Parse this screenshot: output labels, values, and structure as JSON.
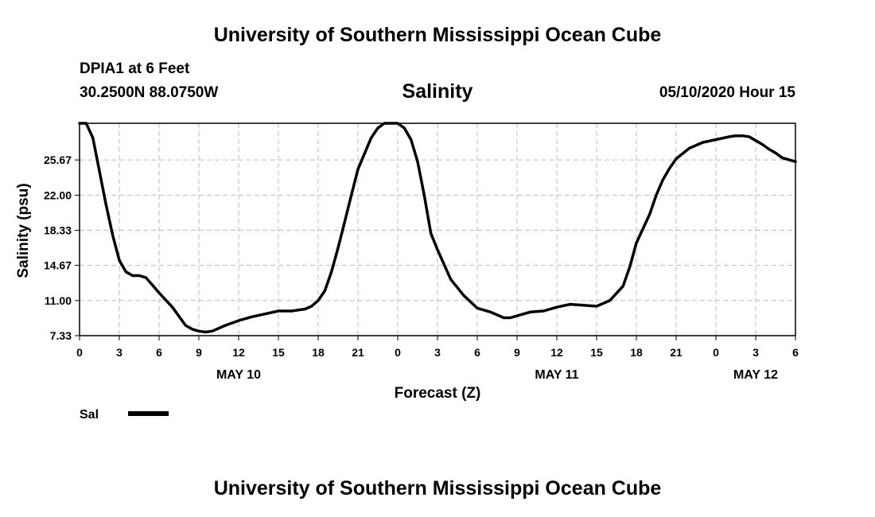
{
  "header": {
    "title_top": "University of Southern Mississippi Ocean Cube",
    "station": "DPIA1 at 6 Feet",
    "coords": "30.2500N 88.0750W",
    "datetime": "05/10/2020 Hour 15",
    "title_bottom": "University of Southern Mississippi Ocean Cube"
  },
  "colors": {
    "line": "#000000",
    "grid": "#bbbbbb",
    "background": "#ffffff"
  },
  "chart_data": {
    "type": "line",
    "title": "Salinity",
    "xlabel": "Forecast (Z)",
    "ylabel": "Salinity (psu)",
    "xlim": [
      0,
      54
    ],
    "ylim": [
      7.33,
      29.5
    ],
    "x_ticks": [
      0,
      3,
      6,
      9,
      12,
      15,
      18,
      21,
      24,
      27,
      30,
      33,
      36,
      39,
      42,
      45,
      48,
      51,
      54
    ],
    "x_tick_labels": [
      "0",
      "3",
      "6",
      "9",
      "12",
      "15",
      "18",
      "21",
      "0",
      "3",
      "6",
      "9",
      "12",
      "15",
      "18",
      "21",
      "0",
      "3",
      "6"
    ],
    "y_ticks": [
      7.33,
      11.0,
      14.67,
      18.33,
      22.0,
      25.67
    ],
    "y_tick_labels": [
      "7.33",
      "11.00",
      "14.67",
      "18.33",
      "22.00",
      "25.67"
    ],
    "day_labels": [
      {
        "x": 12,
        "label": "MAY 10"
      },
      {
        "x": 36,
        "label": "MAY 11"
      },
      {
        "x": 51,
        "label": "MAY 12"
      }
    ],
    "grid": true,
    "legend": {
      "placement": "bottom-left",
      "entries": [
        "Sal"
      ]
    },
    "series": [
      {
        "name": "Sal",
        "x": [
          0,
          0.5,
          1,
          1.5,
          2,
          2.5,
          3,
          3.5,
          4,
          4.5,
          5,
          5.5,
          6,
          7,
          8,
          8.5,
          9,
          9.5,
          10,
          11,
          12,
          13,
          14,
          15,
          16,
          17,
          17.5,
          18,
          18.5,
          19,
          19.5,
          20,
          20.5,
          21,
          22,
          22.5,
          23,
          23.5,
          24,
          24.5,
          25,
          25.5,
          26,
          26.5,
          27,
          28,
          29,
          30,
          31,
          32,
          32.5,
          33,
          33.5,
          34,
          35,
          36,
          37,
          38,
          39,
          40,
          41,
          41.5,
          42,
          43,
          43.5,
          44,
          44.5,
          45,
          46,
          47,
          48,
          49,
          49.5,
          50,
          50.5,
          51,
          51.5,
          52,
          52.5,
          53,
          54
        ],
        "values": [
          29.5,
          29.5,
          28.0,
          24.5,
          21.0,
          17.8,
          15.2,
          14.0,
          13.6,
          13.6,
          13.4,
          12.6,
          11.8,
          10.3,
          8.4,
          8.0,
          7.8,
          7.7,
          7.8,
          8.4,
          8.9,
          9.3,
          9.6,
          9.9,
          9.9,
          10.1,
          10.4,
          11.0,
          12.0,
          14.0,
          16.5,
          19.2,
          22.0,
          24.7,
          28.0,
          29.0,
          29.5,
          29.6,
          29.5,
          29.0,
          27.8,
          25.5,
          22.0,
          18.0,
          16.3,
          13.2,
          11.5,
          10.2,
          9.8,
          9.2,
          9.2,
          9.4,
          9.6,
          9.8,
          9.9,
          10.3,
          10.6,
          10.5,
          10.4,
          11.0,
          12.5,
          14.5,
          17.0,
          20.0,
          22.0,
          23.6,
          24.8,
          25.8,
          26.9,
          27.5,
          27.8,
          28.1,
          28.2,
          28.2,
          28.1,
          27.7,
          27.3,
          26.8,
          26.4,
          25.9,
          25.5
        ]
      }
    ]
  }
}
